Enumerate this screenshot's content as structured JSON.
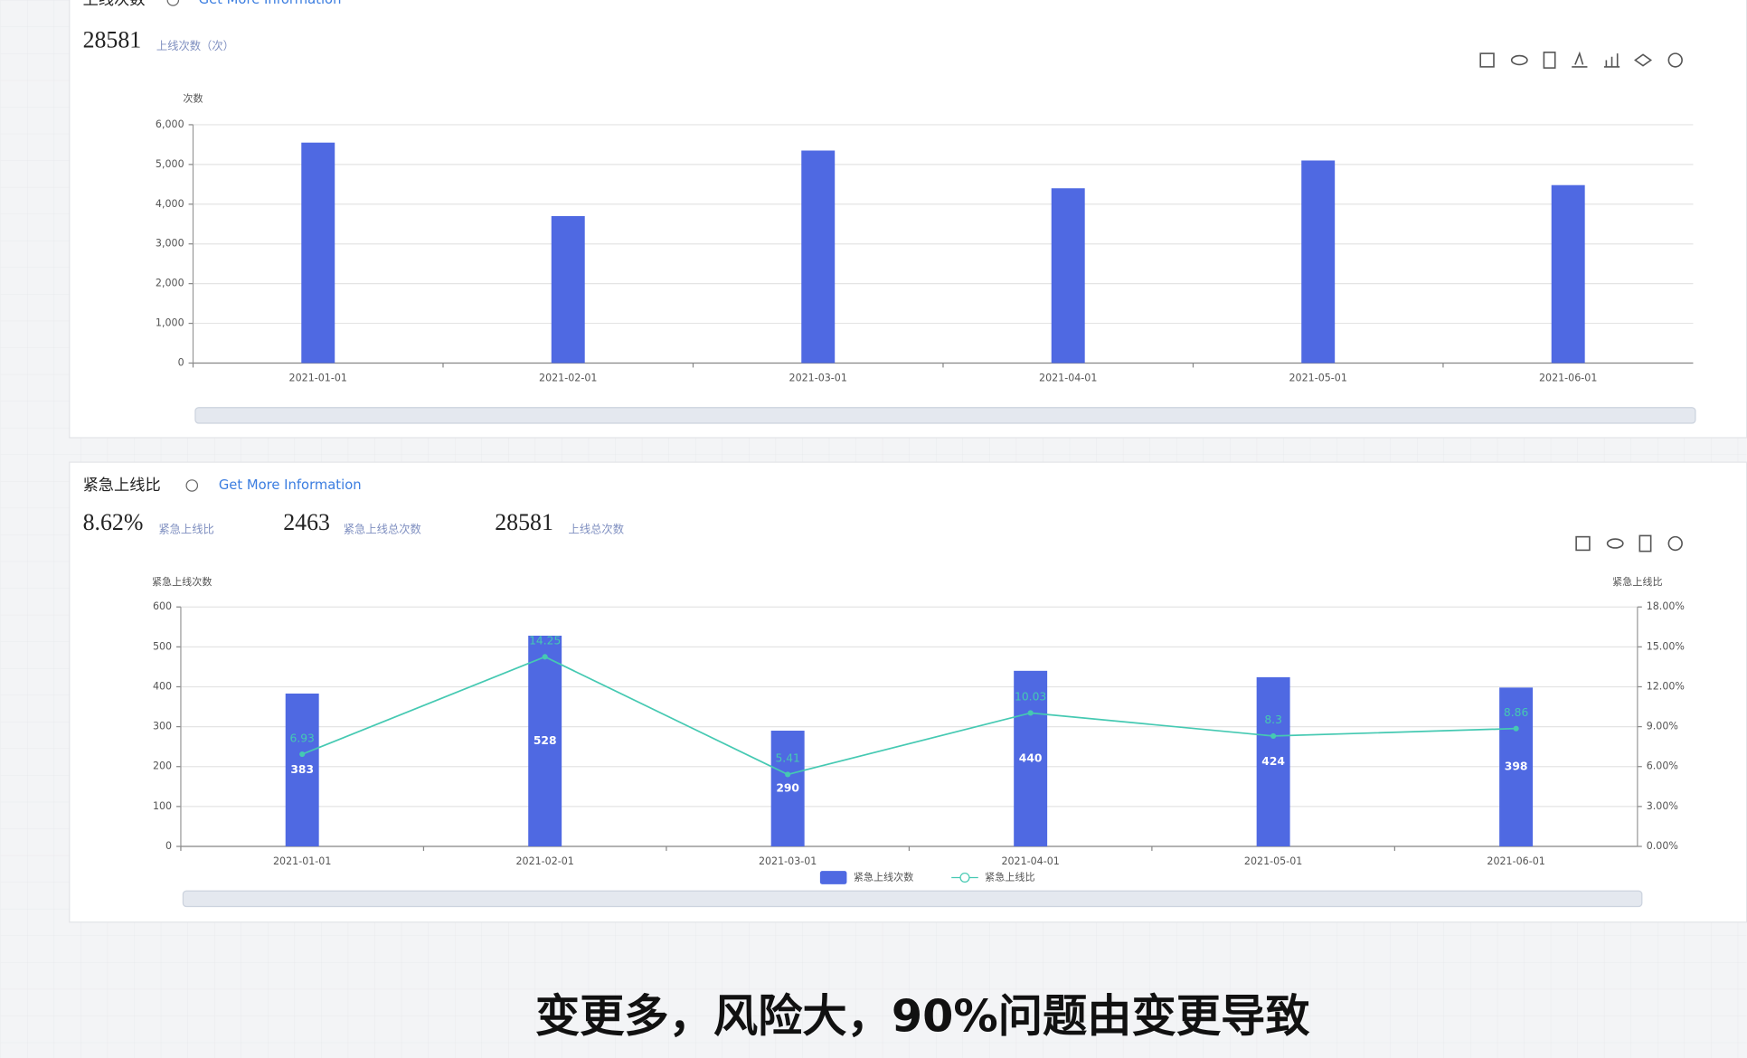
{
  "chart_data": [
    {
      "type": "bar",
      "title": "上线次数",
      "y_label": "次数",
      "categories": [
        "2021-01-01",
        "2021-02-01",
        "2021-03-01",
        "2021-04-01",
        "2021-05-01",
        "2021-06-01"
      ],
      "values": [
        5550,
        3700,
        5350,
        4400,
        5100,
        4480
      ],
      "color": "#4f69e2",
      "ylim": [
        0,
        6000
      ],
      "yticks": [
        0,
        {
          "value": 1000,
          "label": "1,000"
        },
        {
          "value": 2000,
          "label": "2,000"
        },
        {
          "value": 3000,
          "label": "3,000"
        },
        {
          "value": 4000,
          "label": "4,000"
        },
        {
          "value": 5000,
          "label": "5,000"
        },
        {
          "value": 6000,
          "label": "6,000"
        }
      ],
      "grid": true
    },
    {
      "type": "bar",
      "title": "紧急上线比",
      "y_label": "紧急上线次数",
      "y2_label": "紧急上线比",
      "categories": [
        "2021-01-01",
        "2021-02-01",
        "2021-03-01",
        "2021-04-01",
        "2021-05-01",
        "2021-06-01"
      ],
      "series": [
        {
          "name": "紧急上线次数",
          "type": "bar",
          "color": "#4f69e2",
          "values": [
            383,
            528,
            290,
            440,
            424,
            398
          ]
        },
        {
          "name": "紧急上线比",
          "type": "line",
          "axis": "y2",
          "color": "#45c9b2",
          "values": [
            6.93,
            14.25,
            5.41,
            10.03,
            8.3,
            8.86
          ]
        }
      ],
      "ylim": [
        0,
        600
      ],
      "yticks": [
        0,
        100,
        200,
        300,
        400,
        500,
        600
      ],
      "y2lim": [
        0,
        18
      ],
      "y2ticks": [
        {
          "value": 0,
          "label": "0.00%"
        },
        {
          "value": 3,
          "label": "3.00%"
        },
        {
          "value": 6,
          "label": "6.00%"
        },
        {
          "value": 9,
          "label": "9.00%"
        },
        {
          "value": 12,
          "label": "12.00%"
        },
        {
          "value": 15,
          "label": "15.00%"
        },
        {
          "value": 18,
          "label": "18.00%"
        }
      ],
      "grid": true,
      "data_labels": true,
      "legend": "bottom"
    }
  ],
  "panels": [
    {
      "link": "Get More Information",
      "kpis": [
        {
          "value": "28581",
          "label": "上线次数（次）"
        }
      ]
    },
    {
      "link": "Get More Information",
      "kpis": [
        {
          "value": "8.62%",
          "label": "紧急上线比"
        },
        {
          "value": "2463",
          "label": "紧急上线总次数"
        },
        {
          "value": "28581",
          "label": "上线总次数"
        }
      ]
    }
  ],
  "caption": "变更多，风险大，90%问题由变更导致"
}
